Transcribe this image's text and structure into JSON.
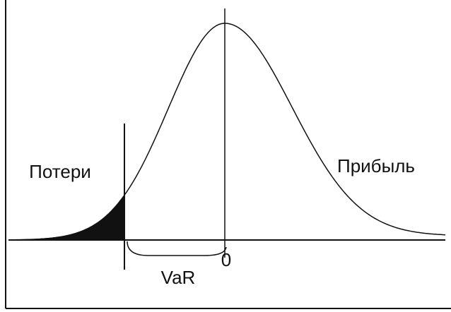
{
  "labels": {
    "losses": "Потери",
    "profit": "Прибыль",
    "var": "VaR",
    "zero": "0"
  }
}
